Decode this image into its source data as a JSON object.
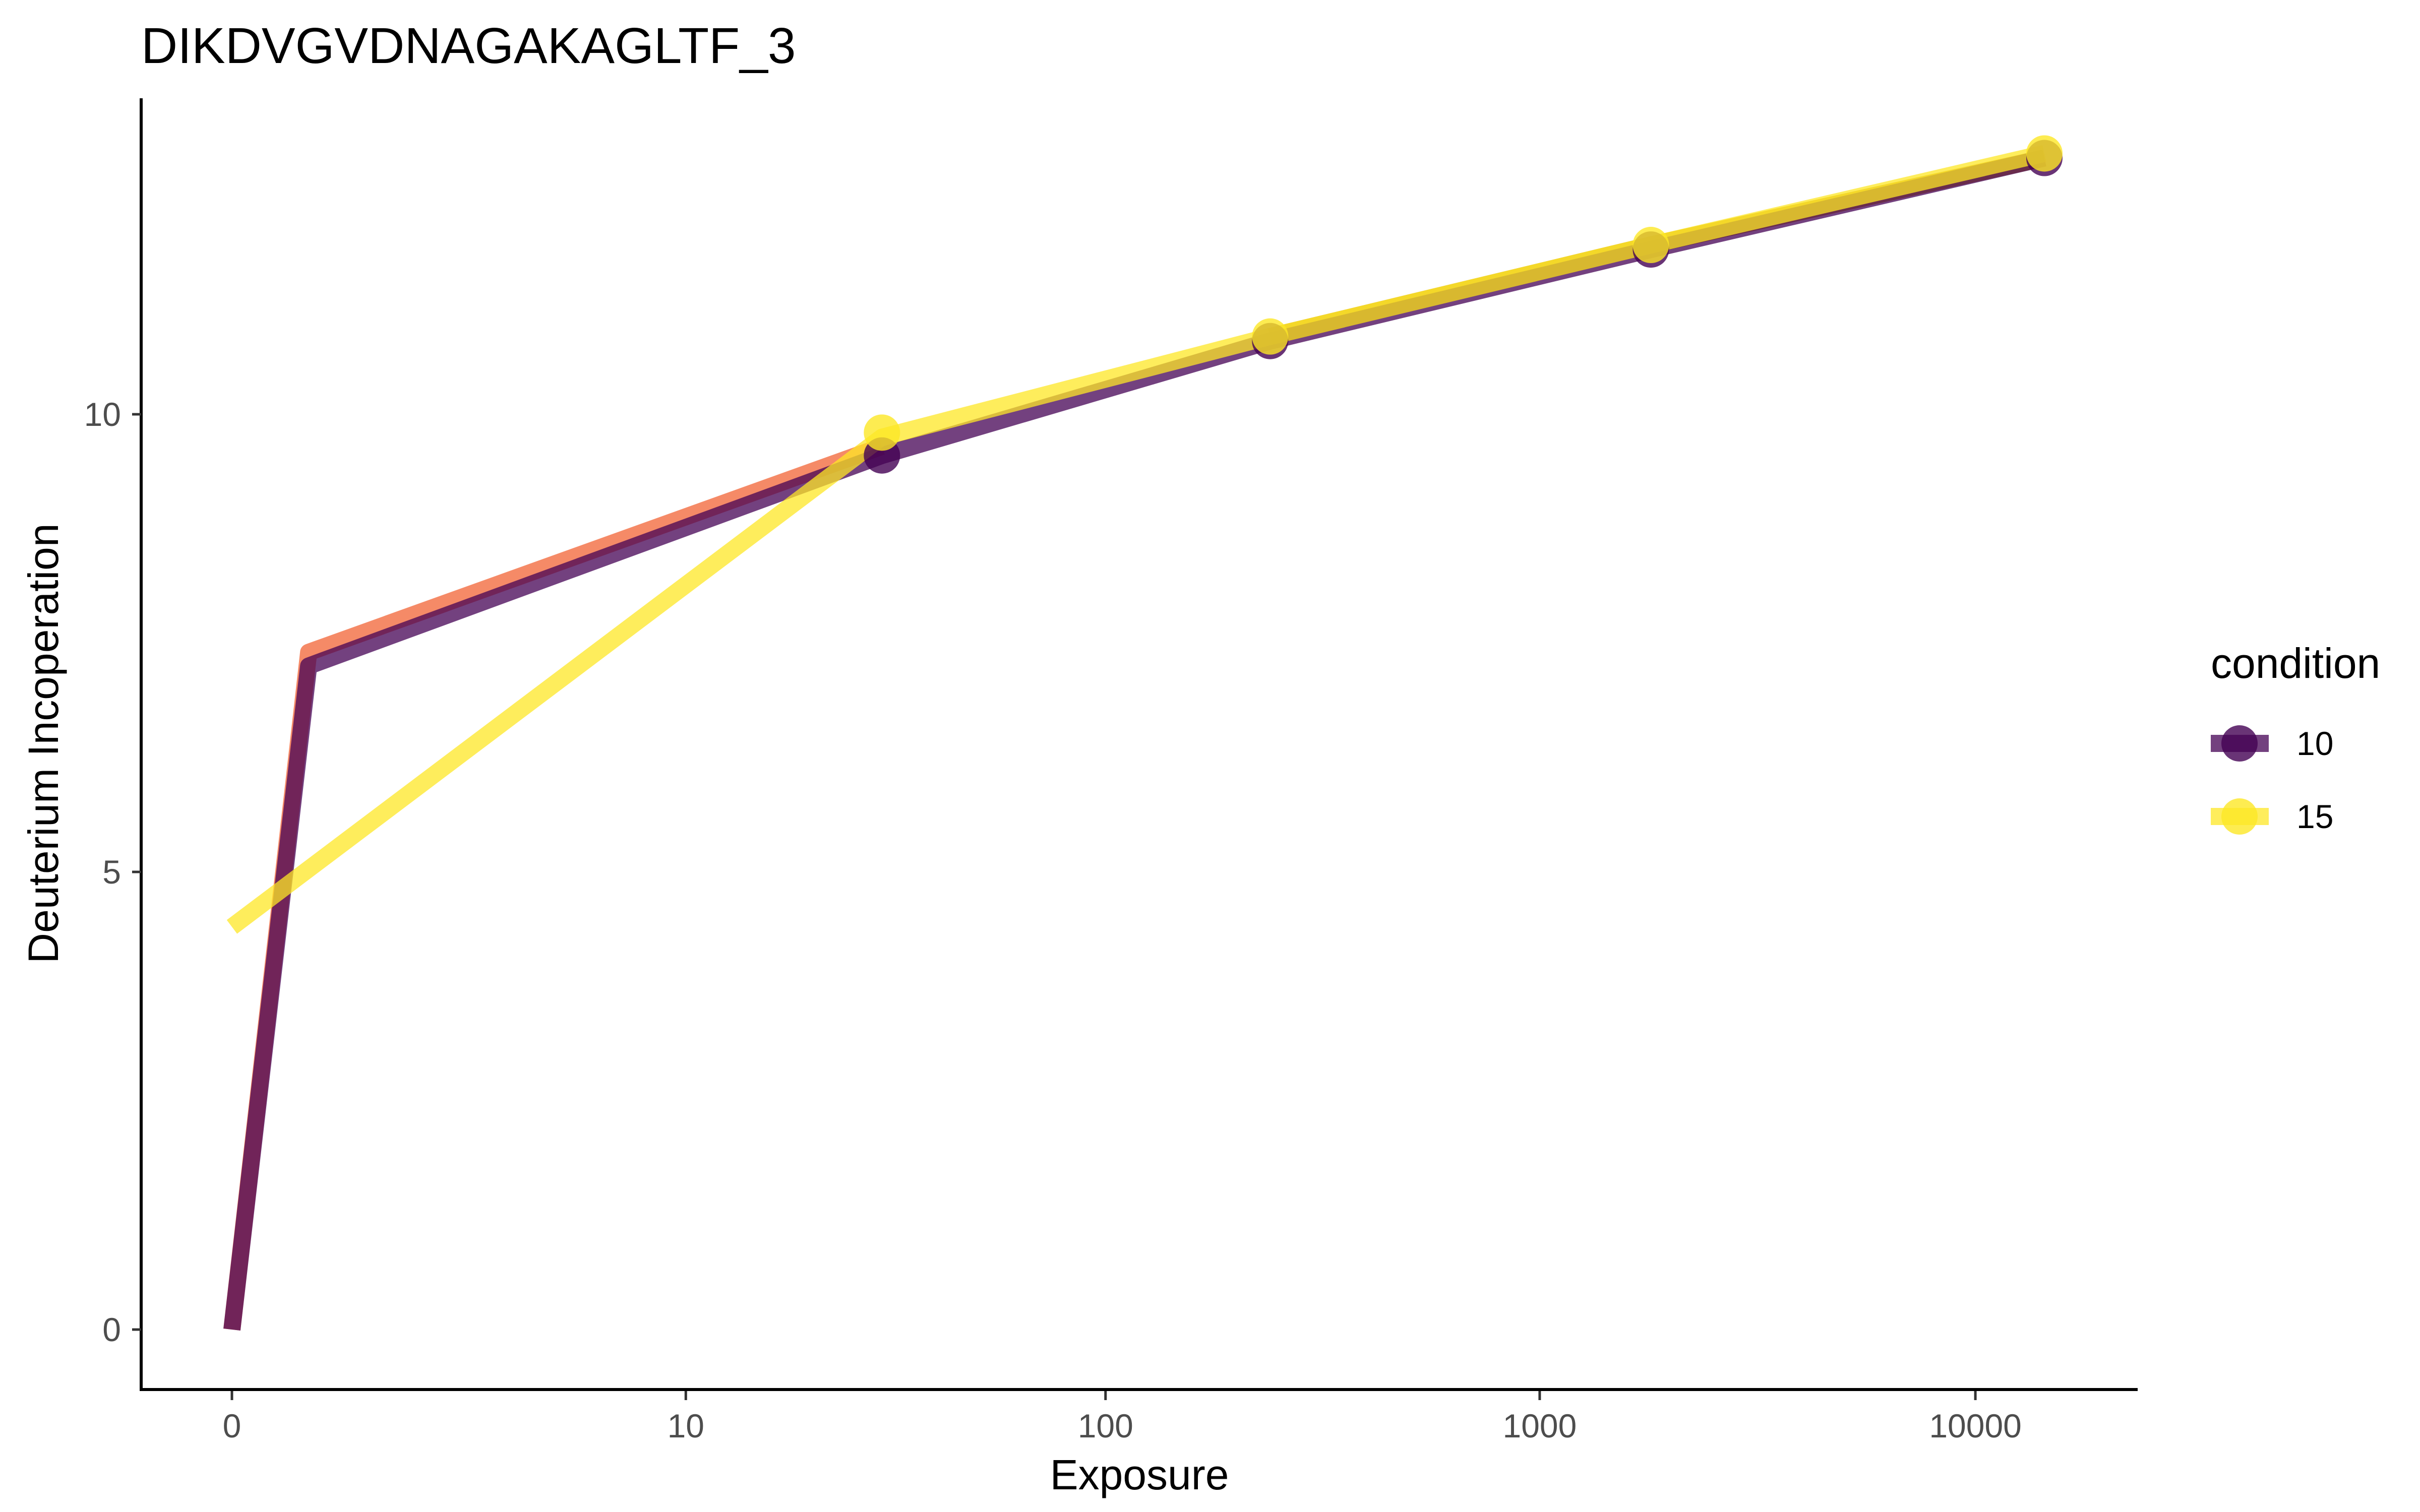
{
  "chart_data": {
    "type": "line",
    "title": "DIKDVGVDNAGAKAGLTF_3",
    "xlabel": "Exposure",
    "ylabel": "Deuterium Incoperation",
    "x_scale": "pseudo-log",
    "x_tick_labels": [
      "0",
      "10",
      "100",
      "1000",
      "10000"
    ],
    "x_tick_values": [
      0,
      10,
      100,
      1000,
      10000
    ],
    "y_tick_labels": [
      "0",
      "5",
      "10"
    ],
    "y_tick_values": [
      0,
      5,
      10
    ],
    "ylim": [
      -0.6,
      13.3
    ],
    "legend": {
      "title": "condition",
      "position": "right",
      "entries": [
        "10",
        "15"
      ]
    },
    "series": [
      {
        "name": "10",
        "color": "#440154",
        "points": [
          {
            "x": 30,
            "y": 9.55
          },
          {
            "x": 240,
            "y": 10.8
          },
          {
            "x": 1800,
            "y": 11.8
          },
          {
            "x": 14400,
            "y": 12.8
          }
        ],
        "line": [
          {
            "x": 0,
            "y": 0.0
          },
          {
            "x": 0.5,
            "y": 7.25
          },
          {
            "x": 30,
            "y": 9.55
          },
          {
            "x": 240,
            "y": 10.8
          },
          {
            "x": 1800,
            "y": 11.8
          },
          {
            "x": 14400,
            "y": 12.8
          }
        ]
      },
      {
        "name": "15",
        "color": "#FDE725",
        "points": [
          {
            "x": 30,
            "y": 9.8
          },
          {
            "x": 240,
            "y": 10.85
          },
          {
            "x": 1800,
            "y": 11.85
          },
          {
            "x": 14400,
            "y": 12.85
          }
        ],
        "line": [
          {
            "x": 0,
            "y": 4.4
          },
          {
            "x": 30,
            "y": 9.75
          },
          {
            "x": 240,
            "y": 10.85
          },
          {
            "x": 1800,
            "y": 11.85
          },
          {
            "x": 14400,
            "y": 12.85
          }
        ]
      }
    ],
    "overlay_lines": [
      {
        "color": "#F4845F",
        "line": [
          {
            "x": 0,
            "y": 0.0
          },
          {
            "x": 0.5,
            "y": 7.4
          },
          {
            "x": 30,
            "y": 9.65
          }
        ]
      },
      {
        "color": "#D4A62A",
        "line": [
          {
            "x": 240,
            "y": 10.85
          },
          {
            "x": 1800,
            "y": 11.85
          },
          {
            "x": 14400,
            "y": 12.8
          }
        ]
      }
    ]
  }
}
